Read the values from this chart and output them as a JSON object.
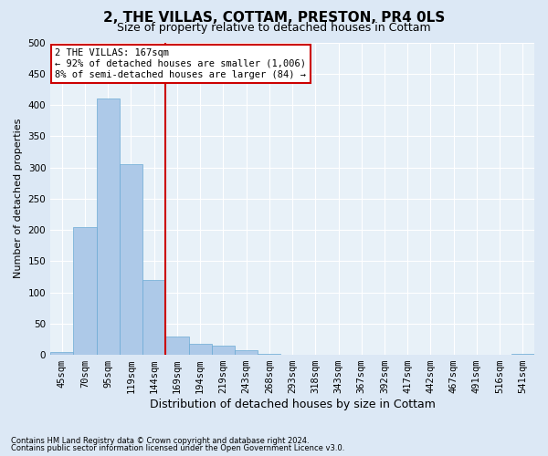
{
  "title": "2, THE VILLAS, COTTAM, PRESTON, PR4 0LS",
  "subtitle": "Size of property relative to detached houses in Cottam",
  "xlabel": "Distribution of detached houses by size in Cottam",
  "ylabel": "Number of detached properties",
  "footnote1": "Contains HM Land Registry data © Crown copyright and database right 2024.",
  "footnote2": "Contains public sector information licensed under the Open Government Licence v3.0.",
  "bin_labels": [
    "45sqm",
    "70sqm",
    "95sqm",
    "119sqm",
    "144sqm",
    "169sqm",
    "194sqm",
    "219sqm",
    "243sqm",
    "268sqm",
    "293sqm",
    "318sqm",
    "343sqm",
    "367sqm",
    "392sqm",
    "417sqm",
    "442sqm",
    "467sqm",
    "491sqm",
    "516sqm",
    "541sqm"
  ],
  "bar_values": [
    5,
    205,
    410,
    305,
    120,
    30,
    18,
    15,
    7,
    2,
    0,
    0,
    0,
    0,
    0,
    0,
    0,
    0,
    0,
    0,
    1
  ],
  "bar_color": "#adc9e8",
  "bar_edge_color": "#6aaad4",
  "vline_x_index": 5,
  "vline_color": "#cc0000",
  "annotation_line1": "2 THE VILLAS: 167sqm",
  "annotation_line2": "← 92% of detached houses are smaller (1,006)",
  "annotation_line3": "8% of semi-detached houses are larger (84) →",
  "annotation_box_color": "#cc0000",
  "ylim": [
    0,
    500
  ],
  "yticks": [
    0,
    50,
    100,
    150,
    200,
    250,
    300,
    350,
    400,
    450,
    500
  ],
  "bg_color": "#dce8f5",
  "plot_bg_color": "#e8f1f8",
  "title_fontsize": 11,
  "subtitle_fontsize": 9,
  "xlabel_fontsize": 9,
  "ylabel_fontsize": 8,
  "tick_fontsize": 7.5,
  "annot_fontsize": 7.5
}
